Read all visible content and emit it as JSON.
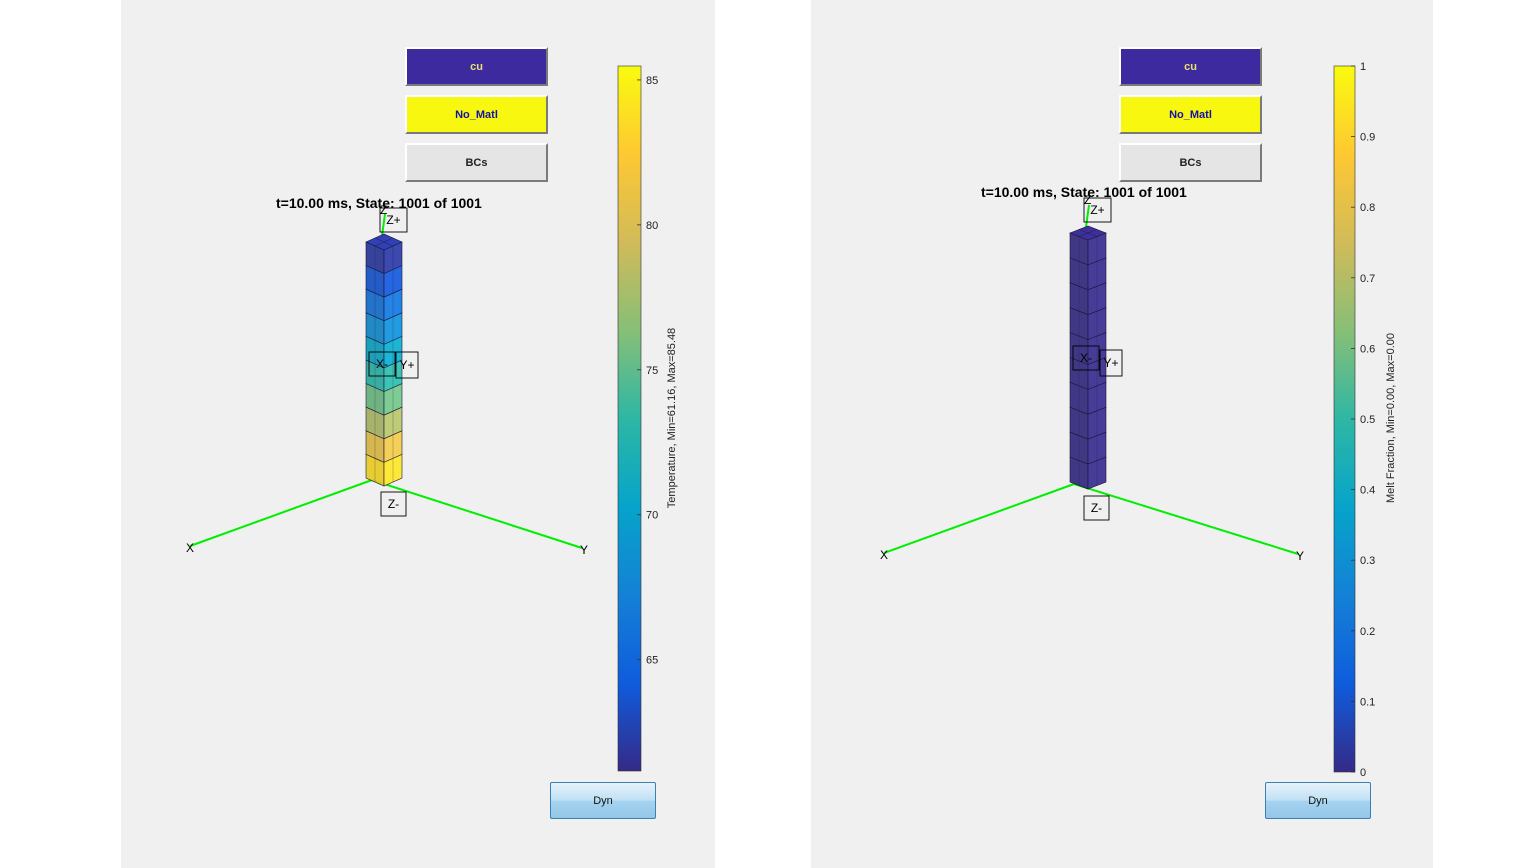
{
  "left": {
    "buttons": {
      "cu": "cu",
      "no_matl": "No_Matl",
      "bcs": "BCs",
      "dyn": "Dyn"
    },
    "title": "t=10.00 ms, State: 1001 of 1001",
    "colorbar": {
      "label": "Temperature, Min=61.16, Max=85.48",
      "min": 61.16,
      "max": 85.48,
      "ticks": [
        65,
        70,
        75,
        80,
        85
      ]
    },
    "axes": {
      "x": "X",
      "y": "Y"
    },
    "face_labels": {
      "z_plus": "Z+",
      "z_minus": "Z-",
      "x_minus": "X-",
      "y_plus": "Y+",
      "z_tip": "Z"
    },
    "cell_values": [
      62.0,
      63.8,
      65.9,
      68.2,
      70.6,
      73.0,
      75.5,
      78.0,
      80.8,
      83.5
    ]
  },
  "right": {
    "buttons": {
      "cu": "cu",
      "no_matl": "No_Matl",
      "bcs": "BCs",
      "dyn": "Dyn"
    },
    "title": "t=10.00 ms, State: 1001 of 1001",
    "colorbar": {
      "label": "Melt Fraction, Min=0.00, Max=0.00",
      "min": 0,
      "max": 1,
      "ticks": [
        "0",
        "0.1",
        "0.2",
        "0.3",
        "0.4",
        "0.5",
        "0.6",
        "0.7",
        "0.8",
        "0.9",
        "1"
      ]
    },
    "axes": {
      "x": "X",
      "y": "Y"
    },
    "face_labels": {
      "z_plus": "Z+",
      "z_minus": "Z-",
      "x_minus": "X-",
      "y_plus": "Y+",
      "z_tip": "Z"
    },
    "cell_values": [
      0,
      0,
      0,
      0,
      0,
      0,
      0,
      0,
      0,
      0
    ]
  },
  "colors": {
    "axis_line": "#00ee00",
    "parula": [
      "#352a87",
      "#0f5cdd",
      "#1481d6",
      "#06a4ca",
      "#2eb7a4",
      "#87bf77",
      "#d1bb59",
      "#fec832",
      "#f9fb0e"
    ]
  }
}
